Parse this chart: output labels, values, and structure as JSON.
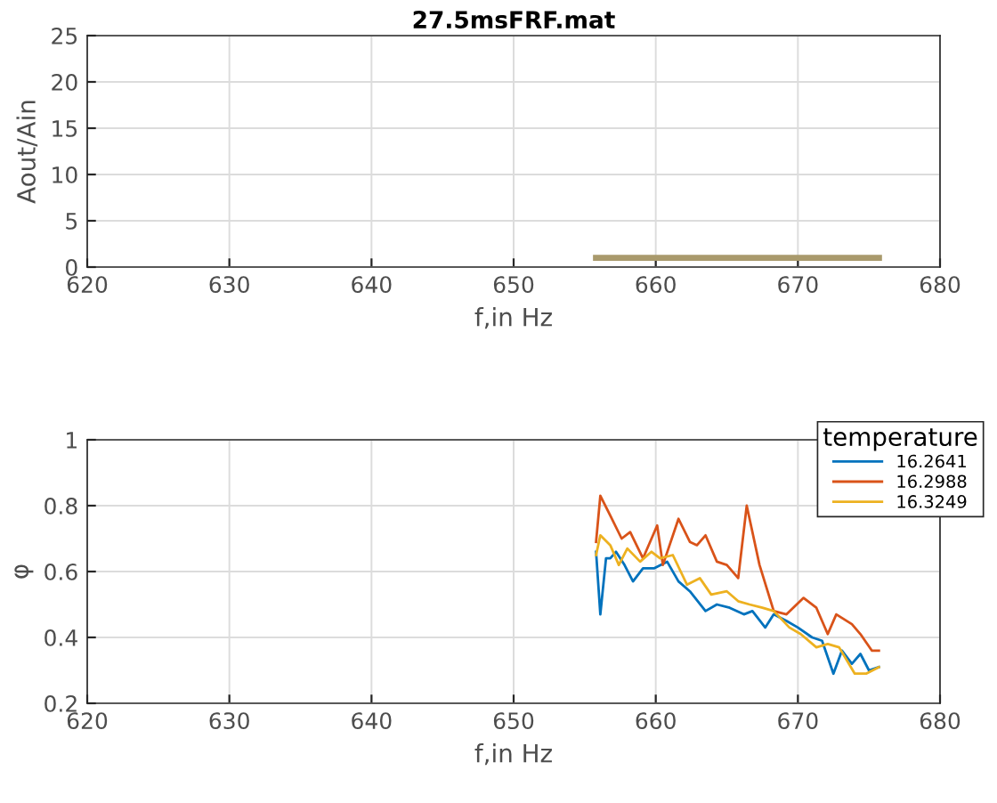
{
  "chart_data": [
    {
      "type": "line",
      "title": "27.5msFRF.mat",
      "xlabel": "f,in Hz",
      "ylabel": "Aout/Ain",
      "xlim": [
        620,
        680
      ],
      "xticks": [
        620,
        630,
        640,
        650,
        660,
        670,
        680
      ],
      "ylim": [
        0,
        25
      ],
      "yticks": [
        0,
        5,
        10,
        15,
        20,
        25
      ],
      "grid": true,
      "legend": false,
      "series": [
        {
          "color": "#a99a6c",
          "x": [
            655.8,
            660,
            665,
            670,
            675.7
          ],
          "values": [
            1,
            1,
            1,
            1,
            1
          ]
        }
      ]
    },
    {
      "type": "line",
      "xlabel": "f,in Hz",
      "ylabel": "φ",
      "legend_title": "temperature",
      "xlim": [
        620,
        680
      ],
      "xticks": [
        620,
        630,
        640,
        650,
        660,
        670,
        680
      ],
      "ylim": [
        0.2,
        1
      ],
      "yticks": [
        0.2,
        0.4,
        0.6,
        0.8,
        1
      ],
      "grid": true,
      "legend": "top right",
      "series": [
        {
          "name": "16.2641",
          "color": "#0072bd",
          "x": [
            655.8,
            656.1,
            656.5,
            656.8,
            657.2,
            657.8,
            658.4,
            659.1,
            659.9,
            660.8,
            661.6,
            662.4,
            663.5,
            664.3,
            665.2,
            666.2,
            666.8,
            667.7,
            668.3,
            669.2,
            670.0,
            671.0,
            671.7,
            672.5,
            673.1,
            673.8,
            674.4,
            675.0,
            675.7
          ],
          "values": [
            0.66,
            0.47,
            0.64,
            0.64,
            0.66,
            0.62,
            0.57,
            0.61,
            0.61,
            0.63,
            0.57,
            0.54,
            0.48,
            0.5,
            0.49,
            0.47,
            0.48,
            0.43,
            0.47,
            0.45,
            0.43,
            0.4,
            0.39,
            0.29,
            0.36,
            0.32,
            0.35,
            0.3,
            0.31
          ]
        },
        {
          "name": "16.2988",
          "color": "#d95319",
          "x": [
            655.8,
            656.1,
            656.8,
            657.6,
            658.2,
            659.1,
            660.1,
            660.5,
            661.6,
            662.4,
            662.9,
            663.5,
            664.3,
            665.0,
            665.8,
            666.4,
            667.3,
            668.3,
            669.2,
            670.4,
            671.3,
            672.1,
            672.7,
            673.8,
            674.4,
            675.2,
            675.7
          ],
          "values": [
            0.69,
            0.83,
            0.77,
            0.7,
            0.72,
            0.64,
            0.74,
            0.62,
            0.76,
            0.69,
            0.68,
            0.71,
            0.63,
            0.62,
            0.58,
            0.8,
            0.62,
            0.48,
            0.47,
            0.52,
            0.49,
            0.41,
            0.47,
            0.44,
            0.41,
            0.36,
            0.36
          ]
        },
        {
          "name": "16.3249",
          "color": "#edb120",
          "x": [
            655.8,
            656.1,
            656.8,
            657.4,
            658.0,
            658.9,
            659.7,
            660.3,
            661.2,
            662.2,
            663.1,
            663.9,
            665.0,
            665.8,
            666.6,
            667.5,
            668.3,
            669.4,
            670.2,
            671.3,
            672.1,
            672.9,
            674.0,
            674.8,
            675.7
          ],
          "values": [
            0.65,
            0.71,
            0.68,
            0.62,
            0.67,
            0.63,
            0.66,
            0.64,
            0.65,
            0.56,
            0.58,
            0.53,
            0.54,
            0.51,
            0.5,
            0.49,
            0.48,
            0.43,
            0.41,
            0.37,
            0.38,
            0.37,
            0.29,
            0.29,
            0.31
          ]
        }
      ]
    }
  ]
}
